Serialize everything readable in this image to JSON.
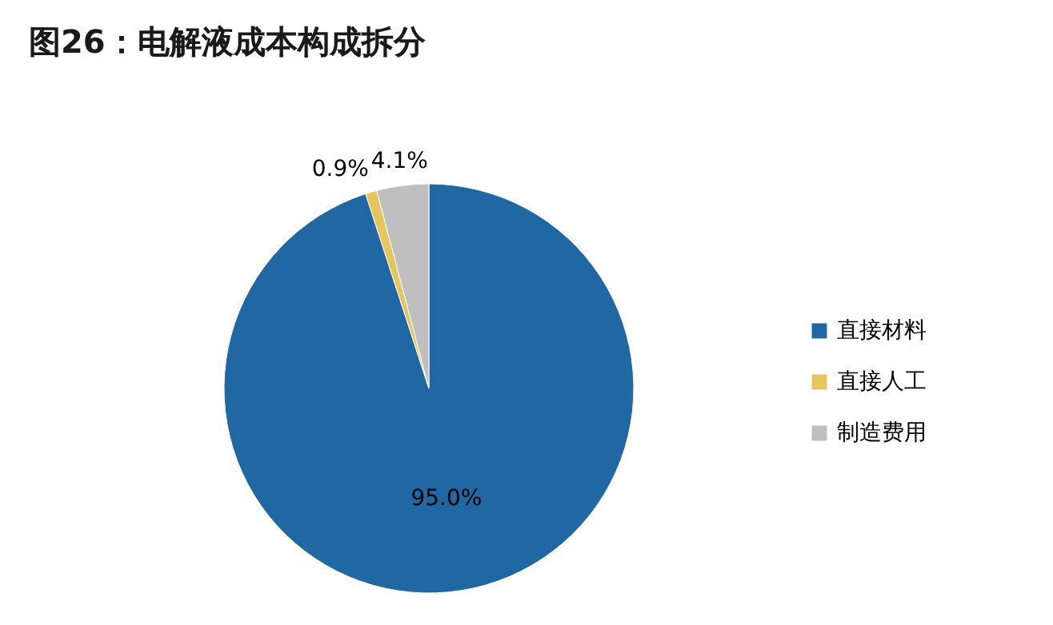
{
  "chart_data": {
    "type": "pie",
    "title": "图26：电解液成本构成拆分",
    "categories": [
      "直接材料",
      "直接人工",
      "制造费用"
    ],
    "values": [
      95.0,
      0.9,
      4.1
    ],
    "colors": [
      "#1f68a4",
      "#e6c65c",
      "#bfbfbf"
    ],
    "value_labels": [
      "95.0%",
      "0.9%",
      "4.1%"
    ],
    "legend": "right"
  }
}
